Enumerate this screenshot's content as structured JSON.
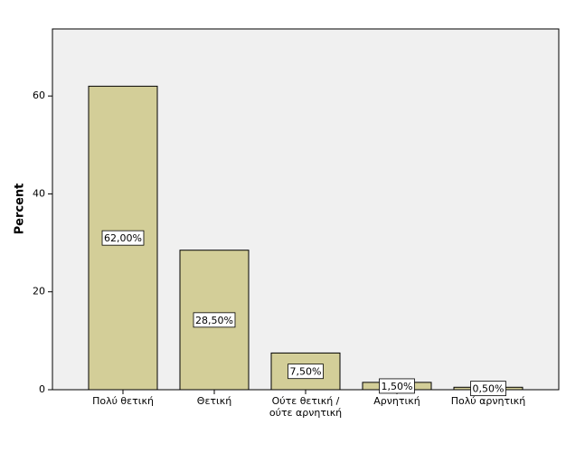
{
  "chart_data": {
    "type": "bar",
    "y_label": "Percent",
    "categories": [
      "Πολύ θετική",
      "Θετική",
      "Ούτε θετική / ούτε αρνητική",
      "Αρνητική",
      "Πολύ αρνητική"
    ],
    "values": [
      62,
      28.5,
      7.5,
      1.5,
      0.5
    ],
    "value_labels": [
      "62,00%",
      "28,50%",
      "7,50%",
      "1,50%",
      "0,50%"
    ],
    "color": "#d3ce98",
    "ylim": [
      0,
      73.7
    ],
    "yticks": [
      0,
      20,
      40,
      60
    ],
    "grid": false
  }
}
